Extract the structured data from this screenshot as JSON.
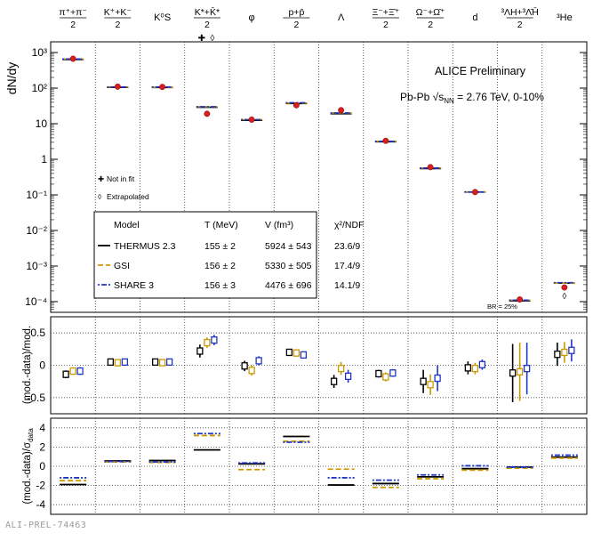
{
  "figure_id": "ALI-PREL-74463",
  "colors": {
    "thermus": "#000000",
    "gsi": "#cc9900",
    "share": "#1f36c9",
    "data_marker": "#d42020"
  },
  "chart_data": [
    {
      "type": "scatter",
      "panel": "yields",
      "categories": [
        "π⁺+π⁻ / 2",
        "K⁺+K⁻ / 2",
        "K⁰S",
        "K*+K̄* / 2",
        "φ",
        "p+p̄ / 2",
        "Λ",
        "Ξ⁻+Ξ̄⁺ / 2",
        "Ω⁻+Ω̄⁺ / 2",
        "d",
        "³ΛH+³Λ̄H̄ / 2",
        "³He"
      ],
      "ylabel": "dN/dy",
      "yscale": "log",
      "ylim": [
        5e-05,
        2000
      ],
      "y_ticks": [
        {
          "v": 1000,
          "label": "10³"
        },
        {
          "v": 100,
          "label": "10²"
        },
        {
          "v": 10,
          "label": "10"
        },
        {
          "v": 1,
          "label": "1"
        },
        {
          "v": 0.1,
          "label": "10⁻¹"
        },
        {
          "v": 0.01,
          "label": "10⁻²"
        },
        {
          "v": 0.001,
          "label": "10⁻³"
        },
        {
          "v": 0.0001,
          "label": "10⁻⁴"
        }
      ],
      "data_values": [
        670,
        110,
        108,
        19,
        13,
        33,
        24,
        3.3,
        0.6,
        0.12,
        0.000115,
        0.00025
      ],
      "series": [
        {
          "name": "THERMUS 2.3",
          "values": [
            640,
            105,
            104,
            29,
            12.5,
            37,
            19,
            3.1,
            0.55,
            0.12,
            0.000105,
            0.00033
          ]
        },
        {
          "name": "GSI",
          "values": [
            660,
            107,
            106,
            30,
            13,
            38,
            20,
            3.2,
            0.57,
            0.122,
            0.00011,
            0.00033
          ]
        },
        {
          "name": "SHARE 3",
          "values": [
            660,
            107,
            107,
            30,
            13,
            39,
            20,
            3.2,
            0.57,
            0.12,
            0.00011,
            0.00034
          ]
        }
      ],
      "annotations": {
        "experiment": "ALICE Preliminary",
        "system_prefix": "Pb-Pb √s",
        "system_sub": "NN",
        "system_suffix": " = 2.76 TeV, 0-10%",
        "not_in_fit": "Not in fit",
        "extrapolated": "Extrapolated",
        "br_note": "BR = 25%"
      },
      "fit_table": {
        "headers": [
          "Model",
          "T (MeV)",
          "V (fm³)",
          "χ²/NDF"
        ],
        "rows": [
          [
            "THERMUS 2.3",
            "155 ± 2",
            "5924 ± 543",
            "23.6/9"
          ],
          [
            "GSI",
            "156 ± 2",
            "5330 ± 505",
            "17.4/9"
          ],
          [
            "SHARE 3",
            "156 ± 3",
            "4476 ± 696",
            "14.1/9"
          ]
        ]
      }
    },
    {
      "type": "scatter",
      "panel": "relative_deviation",
      "ylabel": "(mod.-data)/mod.",
      "ylim": [
        -0.75,
        0.75
      ],
      "y_ticks": [
        {
          "v": 0.5,
          "label": "0.5"
        },
        {
          "v": 0,
          "label": "0"
        },
        {
          "v": -0.5,
          "label": "-0.5"
        }
      ],
      "series": [
        {
          "name": "THERMUS 2.3",
          "values": [
            -0.14,
            0.05,
            0.05,
            0.22,
            -0.01,
            0.2,
            -0.25,
            -0.13,
            -0.25,
            -0.04,
            -0.12,
            0.17
          ],
          "errors": [
            0.06,
            0.05,
            0.05,
            0.1,
            0.08,
            0.05,
            0.1,
            0.06,
            0.18,
            0.1,
            0.45,
            0.18
          ]
        },
        {
          "name": "GSI",
          "values": [
            -0.09,
            0.04,
            0.04,
            0.35,
            -0.08,
            0.19,
            -0.05,
            -0.18,
            -0.3,
            -0.05,
            -0.1,
            0.2
          ],
          "errors": [
            0.06,
            0.05,
            0.05,
            0.08,
            0.08,
            0.05,
            0.1,
            0.07,
            0.16,
            0.09,
            0.45,
            0.16
          ]
        },
        {
          "name": "SHARE 3",
          "values": [
            -0.09,
            0.05,
            0.05,
            0.39,
            0.07,
            0.16,
            -0.17,
            -0.12,
            -0.2,
            0.01,
            -0.05,
            0.23
          ],
          "errors": [
            0.06,
            0.05,
            0.05,
            0.08,
            0.07,
            0.05,
            0.1,
            0.06,
            0.2,
            0.08,
            0.4,
            0.17
          ]
        }
      ]
    },
    {
      "type": "scatter",
      "panel": "deviation_in_sigma",
      "ylabel": "(mod.-data)/σdata",
      "ylim": [
        -5,
        5
      ],
      "y_ticks": [
        {
          "v": 4,
          "label": "4"
        },
        {
          "v": 2,
          "label": "2"
        },
        {
          "v": 0,
          "label": "0"
        },
        {
          "v": -2,
          "label": "-2"
        },
        {
          "v": -4,
          "label": "-4"
        }
      ],
      "series": [
        {
          "name": "THERMUS 2.3",
          "values": [
            -1.9,
            0.55,
            0.6,
            1.7,
            0.25,
            3.1,
            -1.95,
            -1.8,
            -1.1,
            -0.25,
            -0.1,
            0.95
          ]
        },
        {
          "name": "GSI",
          "values": [
            -1.5,
            0.45,
            0.4,
            3.2,
            -0.35,
            2.6,
            -0.3,
            -2.2,
            -1.3,
            -0.4,
            -0.2,
            0.85
          ]
        },
        {
          "name": "SHARE 3",
          "values": [
            -1.2,
            0.5,
            0.45,
            3.4,
            0.35,
            2.5,
            -1.2,
            -1.45,
            -0.9,
            0.05,
            -0.1,
            1.15
          ]
        }
      ]
    }
  ]
}
